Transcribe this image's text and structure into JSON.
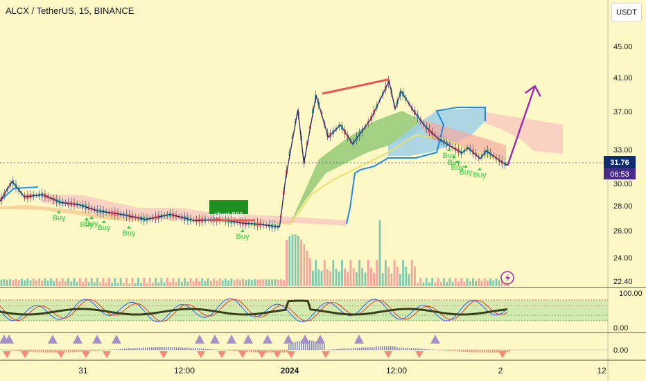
{
  "header": {
    "title": "ALCX / TetherUS, 15, BINANCE",
    "currency": "USDT"
  },
  "price_badge": {
    "price": "31.76",
    "countdown": "06:53"
  },
  "annotation": {
    "box_label": "short 886"
  },
  "signals": {
    "label": "Buy"
  },
  "colors": {
    "background": "#fdf8c6",
    "axis_bg": "#fdf8c6",
    "up_candle": "#26a69a",
    "down_candle": "#ef5350",
    "price_line": "#2f2f6e",
    "cloud_green": "#8cc56f",
    "cloud_blue": "#9fd0e8",
    "cloud_pink": "#f7c6c0",
    "trend_red": "#ef5350",
    "arrow_purple": "#9c27b0",
    "buy_green": "#2ecc40",
    "badge": "#0f2d6e",
    "countdown_badge": "#4a2a8a",
    "rsi_blue": "#2962ff",
    "rsi_red": "#e53935",
    "rsi_black": "#3a3f1a",
    "triangle_purple": "#a78fc9",
    "triangle_red": "#f28b7a",
    "band": "#b5e3a0"
  },
  "chart_data": {
    "type": "line",
    "title": "ALCX / TetherUS, 15, BINANCE",
    "x_tick_labels": [
      "31",
      "12:00",
      "2024",
      "12:00",
      "2",
      "12"
    ],
    "price_axis": {
      "ticks": [
        "45.00",
        "41.00",
        "37.00",
        "33.00",
        "30.00",
        "28.00",
        "26.00",
        "24.00",
        "22.40"
      ],
      "last_price": 31.76
    },
    "oscillator_axis": {
      "ticks": [
        "100.00",
        "0.00"
      ]
    },
    "macd_axis": {
      "ticks": [
        "0.00"
      ]
    },
    "price_series": [
      {
        "t": 0,
        "p": 28.4
      },
      {
        "t": 0.02,
        "p": 30.2
      },
      {
        "t": 0.04,
        "p": 28.8
      },
      {
        "t": 0.07,
        "p": 29.0
      },
      {
        "t": 0.1,
        "p": 28.3
      },
      {
        "t": 0.13,
        "p": 28.1
      },
      {
        "t": 0.16,
        "p": 27.6
      },
      {
        "t": 0.2,
        "p": 27.3
      },
      {
        "t": 0.24,
        "p": 26.9
      },
      {
        "t": 0.28,
        "p": 27.3
      },
      {
        "t": 0.32,
        "p": 26.8
      },
      {
        "t": 0.36,
        "p": 26.9
      },
      {
        "t": 0.4,
        "p": 26.6
      },
      {
        "t": 0.43,
        "p": 26.5
      },
      {
        "t": 0.46,
        "p": 26.3
      },
      {
        "t": 0.47,
        "p": 30.5
      },
      {
        "t": 0.49,
        "p": 37.2
      },
      {
        "t": 0.5,
        "p": 31.8
      },
      {
        "t": 0.52,
        "p": 38.9
      },
      {
        "t": 0.54,
        "p": 34.3
      },
      {
        "t": 0.56,
        "p": 35.6
      },
      {
        "t": 0.58,
        "p": 33.6
      },
      {
        "t": 0.61,
        "p": 36.2
      },
      {
        "t": 0.62,
        "p": 37.6
      },
      {
        "t": 0.64,
        "p": 40.6
      },
      {
        "t": 0.65,
        "p": 37.3
      },
      {
        "t": 0.66,
        "p": 39.4
      },
      {
        "t": 0.68,
        "p": 37.1
      },
      {
        "t": 0.7,
        "p": 35.4
      },
      {
        "t": 0.72,
        "p": 34.2
      },
      {
        "t": 0.74,
        "p": 33.4
      },
      {
        "t": 0.76,
        "p": 32.7
      },
      {
        "t": 0.77,
        "p": 33.2
      },
      {
        "t": 0.79,
        "p": 32.2
      },
      {
        "t": 0.8,
        "p": 32.9
      },
      {
        "t": 0.82,
        "p": 32.1
      },
      {
        "t": 0.835,
        "p": 31.6
      }
    ],
    "projection": [
      {
        "t": 0.835,
        "p": 31.6
      },
      {
        "t": 0.88,
        "p": 40.0
      }
    ],
    "trendline": [
      {
        "t": 0.53,
        "p": 39.1
      },
      {
        "t": 0.64,
        "p": 40.8
      }
    ],
    "last_price": 31.76
  }
}
